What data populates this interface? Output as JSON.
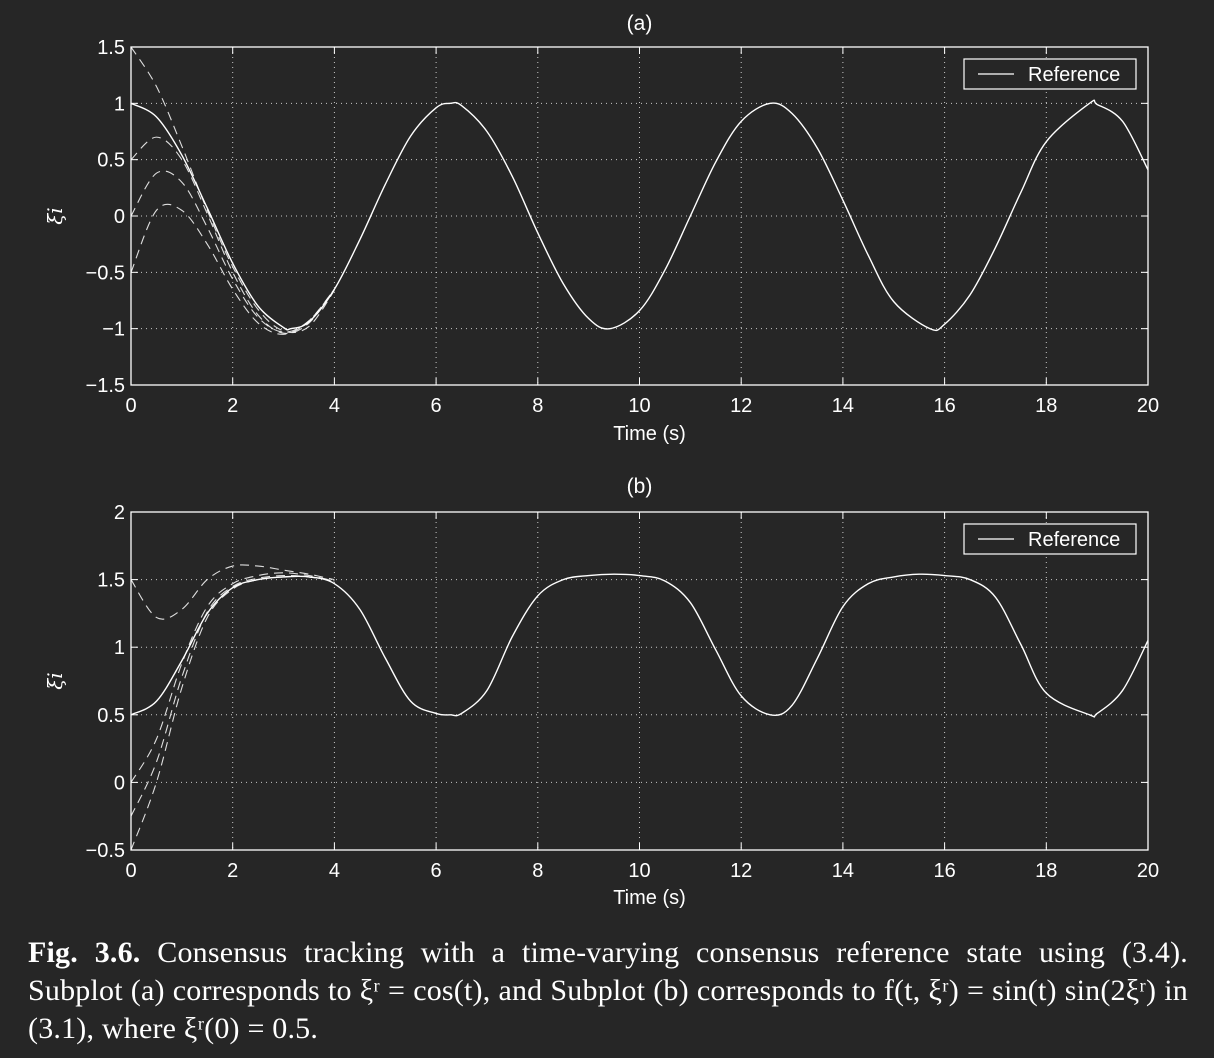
{
  "caption": {
    "label": "Fig. 3.6.",
    "text": "Consensus tracking with a time-varying consensus reference state using (3.4). Subplot (a) corresponds to ξʳ = cos(t), and Subplot (b) corresponds to f(t, ξʳ) = sin(t) sin(2ξʳ) in (3.1), where ξʳ(0) = 0.5."
  },
  "colors": {
    "background": "#262626",
    "foreground": "#ffffff",
    "grid": "#ffffff"
  },
  "chart_data": [
    {
      "type": "line",
      "title": "(a)",
      "xlabel": "Time (s)",
      "ylabel": "ξi",
      "xlim": [
        0,
        20
      ],
      "ylim": [
        -1.5,
        1.5
      ],
      "xticks": [
        "0",
        "2",
        "4",
        "6",
        "8",
        "10",
        "12",
        "14",
        "16",
        "18",
        "20"
      ],
      "yticks": [
        "−1.5",
        "−1",
        "−0.5",
        "0",
        "0.5",
        "1",
        "1.5"
      ],
      "ytick_values": [
        -1.5,
        -1,
        -0.5,
        0,
        0.5,
        1,
        1.5
      ],
      "grid": true,
      "legend": {
        "position": "top-right",
        "entries": [
          "Reference"
        ]
      },
      "series": [
        {
          "name": "Reference",
          "style": "solid",
          "x": [
            0,
            0.5,
            1,
            1.5,
            2,
            2.5,
            3,
            3.14,
            3.5,
            4,
            4.5,
            5,
            5.5,
            6,
            6.28,
            6.5,
            7,
            7.5,
            8,
            8.5,
            9,
            9.42,
            10,
            10.5,
            11,
            11.5,
            12,
            12.57,
            13,
            13.5,
            14,
            14.5,
            15,
            15.71,
            16,
            16.5,
            17,
            17.5,
            18,
            18.85,
            19,
            19.5,
            20
          ],
          "y": [
            1,
            0.88,
            0.54,
            0.07,
            -0.42,
            -0.8,
            -0.99,
            -1,
            -0.94,
            -0.65,
            -0.21,
            0.28,
            0.71,
            0.96,
            1,
            0.98,
            0.75,
            0.35,
            -0.15,
            -0.6,
            -0.91,
            -1,
            -0.84,
            -0.48,
            0.0,
            0.48,
            0.84,
            1,
            0.91,
            0.6,
            0.14,
            -0.35,
            -0.76,
            -1,
            -0.96,
            -0.7,
            -0.28,
            0.21,
            0.66,
            1,
            0.99,
            0.84,
            0.41
          ]
        },
        {
          "name": "",
          "style": "dashed",
          "x": [
            0,
            0.5,
            1,
            1.5,
            2,
            2.5,
            3,
            3.5,
            4
          ],
          "y": [
            1.5,
            1.15,
            0.62,
            0.05,
            -0.45,
            -0.83,
            -1.02,
            -0.98,
            -0.66
          ]
        },
        {
          "name": "",
          "style": "dashed",
          "x": [
            0,
            0.5,
            1,
            1.5,
            2,
            2.5,
            3,
            3.5,
            4
          ],
          "y": [
            0.5,
            0.7,
            0.5,
            0.02,
            -0.5,
            -0.88,
            -1.04,
            -0.95,
            -0.65
          ]
        },
        {
          "name": "",
          "style": "dashed",
          "x": [
            0,
            0.5,
            1,
            1.5,
            2,
            2.5,
            3,
            3.5,
            4
          ],
          "y": [
            0.0,
            0.38,
            0.3,
            -0.1,
            -0.56,
            -0.9,
            -1.03,
            -0.93,
            -0.65
          ]
        },
        {
          "name": "",
          "style": "dashed",
          "x": [
            0,
            0.5,
            1,
            1.5,
            2,
            2.5,
            3,
            3.5,
            4
          ],
          "y": [
            -0.5,
            0.05,
            0.05,
            -0.25,
            -0.65,
            -0.95,
            -1.05,
            -0.93,
            -0.65
          ]
        }
      ]
    },
    {
      "type": "line",
      "title": "(b)",
      "xlabel": "Time (s)",
      "ylabel": "ξi",
      "xlim": [
        0,
        20
      ],
      "ylim": [
        -0.5,
        2
      ],
      "xticks": [
        "0",
        "2",
        "4",
        "6",
        "8",
        "10",
        "12",
        "14",
        "16",
        "18",
        "20"
      ],
      "yticks": [
        "−0.5",
        "0",
        "0.5",
        "1",
        "1.5",
        "2"
      ],
      "ytick_values": [
        -0.5,
        0,
        0.5,
        1,
        1.5,
        2
      ],
      "grid": true,
      "legend": {
        "position": "top-right",
        "entries": [
          "Reference"
        ]
      },
      "series": [
        {
          "name": "Reference",
          "style": "solid",
          "x": [
            0,
            0.5,
            1,
            1.5,
            2,
            2.5,
            3,
            3.5,
            4,
            4.5,
            5,
            5.5,
            6,
            6.28,
            6.5,
            7,
            7.5,
            8,
            8.5,
            9,
            9.5,
            10,
            10.5,
            11,
            11.5,
            12,
            12.57,
            13,
            13.5,
            14,
            14.5,
            15,
            15.5,
            16,
            16.5,
            17,
            17.5,
            18,
            18.85,
            19,
            19.5,
            20
          ],
          "y": [
            0.5,
            0.6,
            0.9,
            1.25,
            1.44,
            1.5,
            1.52,
            1.52,
            1.47,
            1.28,
            0.92,
            0.6,
            0.51,
            0.5,
            0.51,
            0.68,
            1.08,
            1.38,
            1.5,
            1.53,
            1.54,
            1.53,
            1.49,
            1.33,
            0.98,
            0.64,
            0.5,
            0.57,
            0.92,
            1.3,
            1.47,
            1.52,
            1.54,
            1.53,
            1.5,
            1.37,
            1.02,
            0.66,
            0.5,
            0.51,
            0.68,
            1.05
          ]
        },
        {
          "name": "",
          "style": "dashed",
          "x": [
            0,
            0.5,
            1,
            1.5,
            2,
            2.5,
            3,
            3.5,
            4
          ],
          "y": [
            1.5,
            1.22,
            1.28,
            1.5,
            1.6,
            1.6,
            1.57,
            1.54,
            1.5
          ]
        },
        {
          "name": "",
          "style": "dashed",
          "x": [
            0,
            0.5,
            1,
            1.5,
            2,
            2.5,
            3,
            3.5,
            4
          ],
          "y": [
            0.0,
            0.32,
            0.88,
            1.3,
            1.47,
            1.53,
            1.55,
            1.53,
            1.49
          ]
        },
        {
          "name": "",
          "style": "dashed",
          "x": [
            0,
            0.5,
            1,
            1.5,
            2,
            2.5,
            3,
            3.5,
            4
          ],
          "y": [
            -0.25,
            0.15,
            0.78,
            1.26,
            1.45,
            1.51,
            1.53,
            1.52,
            1.49
          ]
        },
        {
          "name": "",
          "style": "dashed",
          "x": [
            0,
            0.5,
            1,
            1.5,
            2,
            2.5,
            3,
            3.5,
            4
          ],
          "y": [
            -0.5,
            0.0,
            0.7,
            1.22,
            1.43,
            1.5,
            1.52,
            1.52,
            1.49
          ]
        }
      ]
    }
  ]
}
